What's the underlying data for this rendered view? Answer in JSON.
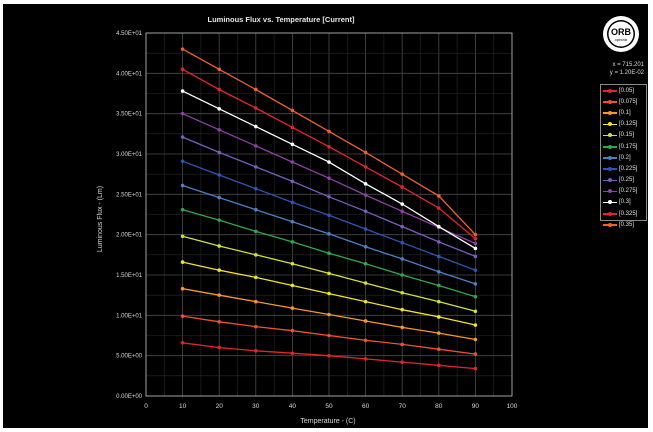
{
  "chart_data": {
    "type": "line",
    "title": "Luminous Flux vs. Temperature [Current]",
    "xlabel": "Temperature - (C)",
    "ylabel": "Luminous Flux - (Lm)",
    "xlim": [
      0,
      100
    ],
    "ylim": [
      0,
      45
    ],
    "x_ticks": [
      "0",
      "10",
      "20",
      "30",
      "40",
      "50",
      "60",
      "70",
      "80",
      "90",
      "100"
    ],
    "y_ticks": [
      "0.00E+00",
      "5.00E+00",
      "1.00E+01",
      "1.50E+01",
      "2.00E+01",
      "2.50E+01",
      "3.00E+01",
      "3.50E+01",
      "4.00E+01",
      "4.50E+01"
    ],
    "grid": true,
    "legend_position": "right",
    "x": [
      10,
      20,
      30,
      40,
      50,
      60,
      70,
      80,
      90
    ],
    "series": [
      {
        "name": "[0.05]",
        "color": "#e3252a",
        "values": [
          6.6,
          6.0,
          5.6,
          5.3,
          5.0,
          4.6,
          4.2,
          3.8,
          3.4
        ]
      },
      {
        "name": "[0.075]",
        "color": "#f0502d",
        "values": [
          9.9,
          9.2,
          8.6,
          8.1,
          7.5,
          6.9,
          6.4,
          5.8,
          5.2
        ]
      },
      {
        "name": "[0.1]",
        "color": "#f7962a",
        "values": [
          13.3,
          12.5,
          11.7,
          10.9,
          10.1,
          9.3,
          8.5,
          7.8,
          7.0
        ]
      },
      {
        "name": "[0.125]",
        "color": "#f2e22a",
        "values": [
          16.6,
          15.6,
          14.7,
          13.7,
          12.7,
          11.7,
          10.7,
          9.8,
          8.8
        ]
      },
      {
        "name": "[0.15]",
        "color": "#d2df3a",
        "values": [
          19.8,
          18.6,
          17.5,
          16.4,
          15.2,
          14.0,
          12.8,
          11.7,
          10.5
        ]
      },
      {
        "name": "[0.175]",
        "color": "#2fa84a",
        "values": [
          23.1,
          21.8,
          20.4,
          19.1,
          17.7,
          16.4,
          15.0,
          13.7,
          12.3
        ]
      },
      {
        "name": "[0.2]",
        "color": "#4b7fc6",
        "values": [
          26.1,
          24.6,
          23.1,
          21.6,
          20.1,
          18.5,
          17.0,
          15.4,
          13.9
        ]
      },
      {
        "name": "[0.225]",
        "color": "#2f55b8",
        "values": [
          29.1,
          27.4,
          25.7,
          24.0,
          22.4,
          20.7,
          19.0,
          17.3,
          15.6
        ]
      },
      {
        "name": "[0.25]",
        "color": "#7a5cc0",
        "values": [
          32.1,
          30.2,
          28.4,
          26.6,
          24.7,
          22.9,
          21.0,
          19.1,
          17.3
        ]
      },
      {
        "name": "[0.275]",
        "color": "#8e3fa8",
        "values": [
          35.0,
          33.0,
          31.0,
          29.0,
          27.0,
          24.9,
          22.9,
          20.9,
          18.9
        ]
      },
      {
        "name": "[0.3]",
        "color": "#ffffff",
        "values": [
          37.8,
          35.6,
          33.4,
          31.2,
          29.0,
          26.3,
          23.8,
          21.0,
          18.3
        ]
      },
      {
        "name": "[0.325]",
        "color": "#e3252a",
        "values": [
          40.5,
          38.0,
          35.7,
          33.3,
          30.9,
          28.4,
          25.9,
          23.3,
          19.5
        ]
      },
      {
        "name": "[0.35]",
        "color": "#f0602d",
        "values": [
          43.0,
          40.5,
          38.0,
          35.4,
          32.8,
          30.2,
          27.5,
          24.8,
          20.0
        ]
      }
    ]
  },
  "logo": {
    "text": "ORB",
    "subtext": "optronix"
  },
  "readout": {
    "x": "x = 715.201",
    "y": "y = 1.20E-02"
  },
  "colors": {
    "background": "#000000",
    "grid": "#4a4a4a",
    "axis": "#bdbdbd",
    "text": "#d8d8d8"
  }
}
